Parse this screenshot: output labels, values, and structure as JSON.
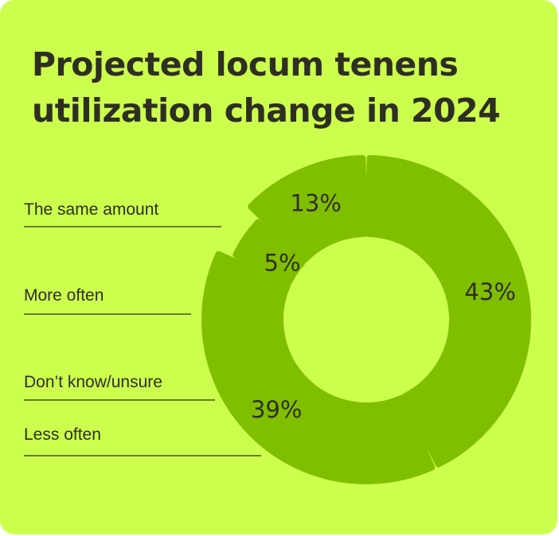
{
  "title_line1": "Projected locum tenens",
  "title_line2": "utilization change in 2024",
  "chart_data": {
    "type": "pie",
    "title": "Projected locum tenens utilization change in 2024",
    "slices": [
      {
        "label": "The same amount",
        "value": 43,
        "display": "43%"
      },
      {
        "label": "Less often",
        "value": 39,
        "display": "39%"
      },
      {
        "label": "Don’t know/unsure",
        "value": 5,
        "display": "5%"
      },
      {
        "label": "More often",
        "value": 13,
        "display": "13%"
      }
    ],
    "donut": true,
    "legend": "left"
  },
  "colors": {
    "background": "#ccff4d",
    "slice": "#80be00",
    "text": "#2e2e24"
  }
}
